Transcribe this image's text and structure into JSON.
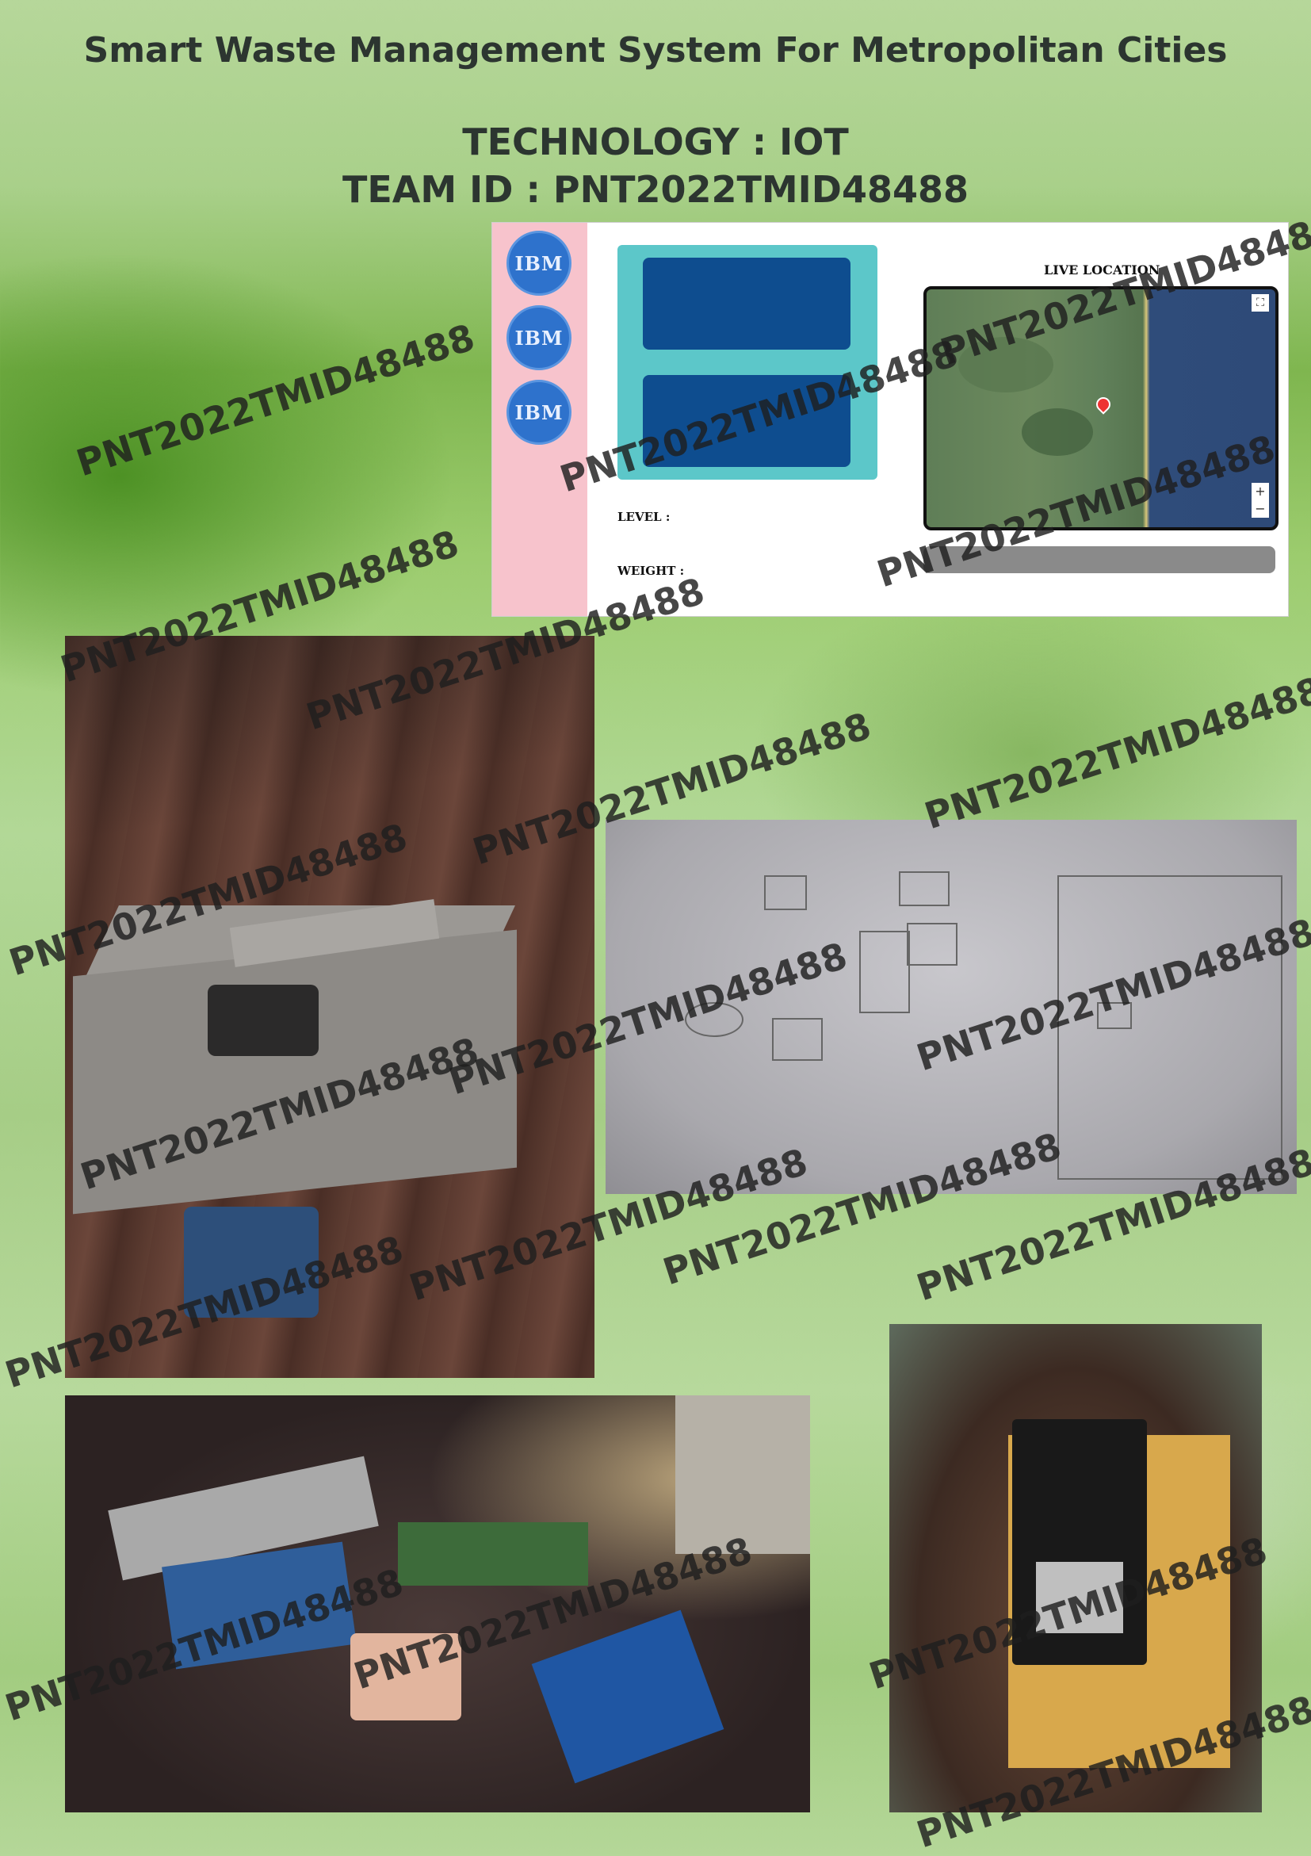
{
  "header": {
    "title": "Smart Waste Management System For Metropolitan Cities",
    "technology": "TECHNOLOGY : IOT",
    "team": "TEAM ID : PNT2022TMID48488"
  },
  "dashboard": {
    "sidebar_buttons": [
      "IBM",
      "IBM",
      "IBM"
    ],
    "level_label": "LEVEL :",
    "weight_label": "WEIGHT :",
    "map_title": "LIVE LOCATION",
    "map_zoom_in": "+",
    "map_zoom_out": "−",
    "colors": {
      "sidebar": "#f7c3cc",
      "bin_panel": "#5cc7c9",
      "bin_block": "#0e4d8f",
      "ibm": "#2e72cc"
    }
  },
  "watermark": "PNT2022TMID48488",
  "photos": [
    "smart-bin-prototype-photo",
    "system-diagram-sketch-photo",
    "sensor-components-photo",
    "nodemcu-board-photo"
  ]
}
